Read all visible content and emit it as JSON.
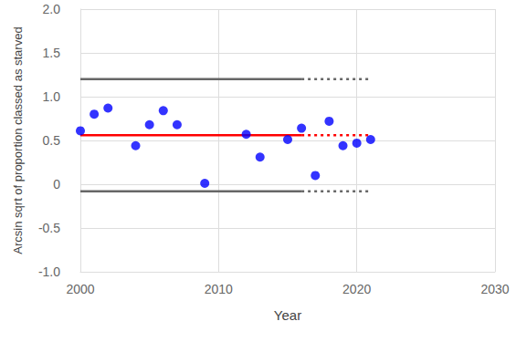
{
  "chart_data": {
    "type": "scatter",
    "x_label": "Year",
    "y_label": "Arcsin sqrt of proportion classed as starved",
    "xlim": [
      2000,
      2030
    ],
    "xticks": [
      2000,
      2010,
      2020,
      2030
    ],
    "ylim": [
      -1,
      2
    ],
    "yticks": [
      {
        "value": -1,
        "label": "-1.0"
      },
      {
        "value": -0.5,
        "label": "-0.5"
      },
      0,
      {
        "value": 0.5,
        "label": "0.5"
      },
      {
        "value": 1,
        "label": "1.0"
      },
      {
        "value": 1.5,
        "label": "1.5"
      },
      {
        "value": 2,
        "label": "2.0"
      }
    ],
    "grid": true,
    "series": [
      {
        "type": "scatter",
        "color": "#0000ff",
        "marker": "circle",
        "x": [
          2000,
          2001,
          2002,
          2004,
          2005,
          2006,
          2007,
          2009,
          2012,
          2013,
          2015,
          2016,
          2017,
          2018,
          2019,
          2020,
          2021
        ],
        "values": [
          0.61,
          0.8,
          0.87,
          0.44,
          0.68,
          0.84,
          0.68,
          0.01,
          0.57,
          0.31,
          0.51,
          0.64,
          0.1,
          0.72,
          0.44,
          0.47,
          0.51
        ]
      },
      {
        "type": "line",
        "color": "#ff0000",
        "line_style": "solid",
        "x": [
          2000,
          2016
        ],
        "values": [
          0.56,
          0.56
        ]
      },
      {
        "type": "line",
        "color": "#ff0000",
        "line_style": "dotted",
        "x": [
          2016,
          2021
        ],
        "values": [
          0.56,
          0.56
        ]
      },
      {
        "type": "line",
        "color": "#666666",
        "line_style": "solid",
        "x": [
          2000,
          2016
        ],
        "values": [
          1.2,
          1.2
        ]
      },
      {
        "type": "line",
        "color": "#666666",
        "line_style": "dotted",
        "x": [
          2016,
          2021
        ],
        "values": [
          1.2,
          1.2
        ]
      },
      {
        "type": "line",
        "color": "#666666",
        "line_style": "solid",
        "x": [
          2000,
          2016
        ],
        "values": [
          -0.08,
          -0.08
        ]
      },
      {
        "type": "line",
        "color": "#666666",
        "line_style": "dotted",
        "x": [
          2016,
          2021
        ],
        "values": [
          -0.08,
          -0.08
        ]
      }
    ]
  }
}
